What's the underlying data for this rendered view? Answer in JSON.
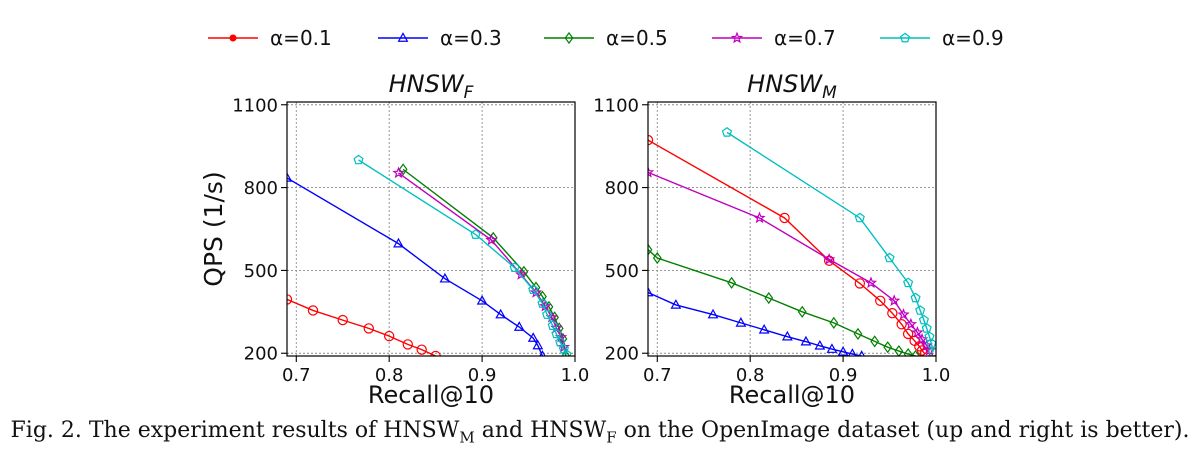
{
  "legend": {
    "placement": "top-center",
    "entries": [
      {
        "label": "α=0.1",
        "color": "#ff0000",
        "marker": "circle"
      },
      {
        "label": "α=0.3",
        "color": "#0000ff",
        "marker": "triangle"
      },
      {
        "label": "α=0.5",
        "color": "#008000",
        "marker": "diamond"
      },
      {
        "label": "α=0.7",
        "color": "#bf00bf",
        "marker": "star"
      },
      {
        "label": "α=0.9",
        "color": "#00bfbf",
        "marker": "pentagon"
      }
    ]
  },
  "caption": {
    "prefix": "Fig. 2.  The experiment results of HNSW",
    "sub1": "M",
    "mid": " and HNSW",
    "sub2": "F",
    "suffix": " on the OpenImage dataset (up and right is better)."
  },
  "chart_data": [
    {
      "type": "line",
      "title_main": "HNSW",
      "title_sub": "F",
      "xlabel": "Recall@10",
      "ylabel": "QPS (1/s)",
      "xlim": [
        0.69,
        1.0
      ],
      "ylim": [
        190,
        1110
      ],
      "xticks": [
        "0.7",
        "0.8",
        "0.9",
        "1.0"
      ],
      "yticks": [
        "200",
        "500",
        "800",
        "1100"
      ],
      "grid": true,
      "series": [
        {
          "name": "α=0.1",
          "color": "#ff0000",
          "marker": "circle",
          "x": [
            0.69,
            0.718,
            0.75,
            0.778,
            0.8,
            0.82,
            0.835,
            0.85
          ],
          "y": [
            395,
            355,
            320,
            290,
            262,
            232,
            213,
            190
          ]
        },
        {
          "name": "α=0.3",
          "color": "#0000ff",
          "marker": "triangle",
          "x": [
            0.69,
            0.81,
            0.86,
            0.9,
            0.92,
            0.94,
            0.955,
            0.96,
            0.965
          ],
          "y": [
            835,
            597,
            470,
            390,
            340,
            295,
            255,
            228,
            190
          ]
        },
        {
          "name": "α=0.5",
          "color": "#008000",
          "marker": "diamond",
          "x": [
            0.815,
            0.912,
            0.945,
            0.958,
            0.965,
            0.972,
            0.978,
            0.983,
            0.987,
            0.99
          ],
          "y": [
            866,
            618,
            495,
            438,
            405,
            368,
            330,
            290,
            252,
            190
          ]
        },
        {
          "name": "α=0.7",
          "color": "#bf00bf",
          "marker": "star",
          "x": [
            0.81,
            0.91,
            0.942,
            0.958,
            0.968,
            0.975,
            0.98,
            0.985,
            0.988
          ],
          "y": [
            853,
            610,
            485,
            420,
            370,
            330,
            292,
            258,
            222
          ]
        },
        {
          "name": "α=0.9",
          "color": "#00bfbf",
          "marker": "pentagon",
          "x": [
            0.767,
            0.893,
            0.935,
            0.955,
            0.965,
            0.97,
            0.976,
            0.98,
            0.984,
            0.988,
            0.991
          ],
          "y": [
            900,
            630,
            510,
            430,
            380,
            340,
            300,
            270,
            240,
            215,
            195
          ]
        }
      ]
    },
    {
      "type": "line",
      "title_main": "HNSW",
      "title_sub": "M",
      "xlabel": "Recall@10",
      "ylabel": "",
      "xlim": [
        0.69,
        1.0
      ],
      "ylim": [
        190,
        1110
      ],
      "xticks": [
        "0.7",
        "0.8",
        "0.9",
        "1.0"
      ],
      "yticks": [
        "200",
        "500",
        "800",
        "1100"
      ],
      "grid": true,
      "series": [
        {
          "name": "α=0.1",
          "color": "#ff0000",
          "marker": "circle",
          "x": [
            0.69,
            0.837,
            0.885,
            0.918,
            0.94,
            0.953,
            0.963,
            0.97,
            0.977,
            0.982,
            0.985,
            0.988
          ],
          "y": [
            972,
            690,
            535,
            453,
            390,
            345,
            305,
            270,
            245,
            225,
            210,
            198
          ]
        },
        {
          "name": "α=0.3",
          "color": "#0000ff",
          "marker": "triangle",
          "x": [
            0.69,
            0.72,
            0.76,
            0.79,
            0.815,
            0.84,
            0.86,
            0.875,
            0.888,
            0.9,
            0.91,
            0.92
          ],
          "y": [
            420,
            375,
            340,
            310,
            285,
            260,
            242,
            227,
            215,
            205,
            197,
            190
          ]
        },
        {
          "name": "α=0.5",
          "color": "#008000",
          "marker": "diamond",
          "x": [
            0.69,
            0.7,
            0.78,
            0.82,
            0.856,
            0.89,
            0.916,
            0.934,
            0.948,
            0.96,
            0.97,
            0.978
          ],
          "y": [
            575,
            545,
            455,
            400,
            350,
            310,
            270,
            243,
            222,
            208,
            197,
            190
          ]
        },
        {
          "name": "α=0.7",
          "color": "#bf00bf",
          "marker": "star",
          "x": [
            0.69,
            0.81,
            0.885,
            0.93,
            0.955,
            0.965,
            0.973,
            0.98,
            0.985,
            0.99,
            0.993
          ],
          "y": [
            855,
            690,
            540,
            455,
            390,
            340,
            305,
            275,
            250,
            228,
            210
          ]
        },
        {
          "name": "α=0.9",
          "color": "#00bfbf",
          "marker": "pentagon",
          "x": [
            0.775,
            0.918,
            0.95,
            0.97,
            0.978,
            0.983,
            0.987,
            0.99,
            0.993,
            0.995,
            0.997
          ],
          "y": [
            1000,
            690,
            545,
            455,
            400,
            355,
            320,
            290,
            260,
            235,
            205
          ]
        }
      ]
    }
  ]
}
